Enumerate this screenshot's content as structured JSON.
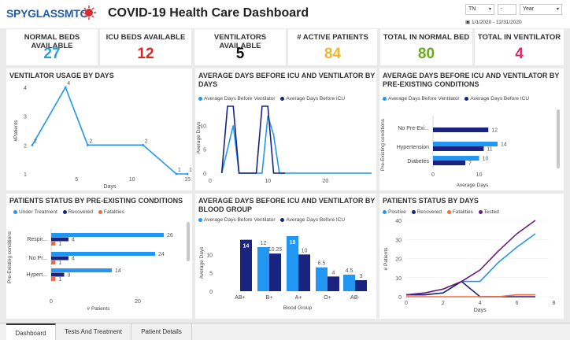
{
  "header": {
    "logo_text": "SPYGLASSMTG",
    "title": "COVID-19 Health Care Dashboard",
    "state_select": "TN",
    "state_select2": "-",
    "period_select": "Year",
    "date_range": "1/1/2020 - 12/31/2020"
  },
  "kpis": [
    {
      "label": "NORMAL BEDS AVAILABLE",
      "value": "27",
      "color": "#2a9fd6"
    },
    {
      "label": "ICU BEDS AVAILABLE",
      "value": "12",
      "color": "#e02424"
    },
    {
      "label": "VENTILATORS AVAILABLE",
      "value": "5",
      "color": "#111111"
    },
    {
      "label": "# ACTIVE PATIENTS",
      "value": "84",
      "color": "#f2b62a"
    },
    {
      "label": "TOTAL IN NORMAL BED",
      "value": "80",
      "color": "#6aa821"
    },
    {
      "label": "TOTAL IN VENTILATOR",
      "value": "4",
      "color": "#d32f6e"
    }
  ],
  "colors": {
    "light_blue": "#2196f3",
    "dark_blue": "#1a237e",
    "orange": "#f26b3a",
    "purple": "#6a1b7a"
  },
  "charts": {
    "vent_usage": {
      "title": "VENTILATOR USAGE BY DAYS",
      "xlabel": "Days",
      "ylabel": "#Patients",
      "x_ticks": [
        "5",
        "10",
        "15"
      ],
      "y_ticks": [
        "1",
        "2",
        "3",
        "4"
      ],
      "chart_data": {
        "type": "line",
        "x": [
          1,
          4,
          6,
          11,
          14,
          15
        ],
        "y": [
          2,
          4,
          2,
          2,
          1,
          1
        ],
        "labels": [
          "2",
          "4",
          "2",
          "2",
          "1",
          "1"
        ]
      }
    },
    "avg_days": {
      "title": "AVERAGE DAYS BEFORE ICU AND VENTILATOR BY DAYS",
      "ylabel": "Average Days",
      "x_ticks": [
        "0",
        "10",
        "20",
        "30"
      ],
      "y_ticks": [
        "0",
        "5",
        "10"
      ],
      "legend": [
        "Average Days Before Ventilator",
        "Average Days Before ICU"
      ],
      "chart_data": {
        "type": "line",
        "x": [
          0,
          1,
          2,
          3,
          4,
          5,
          6,
          7,
          8,
          9,
          10,
          11,
          12,
          13,
          14,
          15,
          16,
          17,
          18,
          19,
          20,
          21,
          22,
          23,
          24,
          25,
          26,
          27,
          28
        ],
        "series": [
          {
            "name": "Average Days Before Ventilator",
            "values": [
              null,
              null,
              0,
              5,
              10,
              0,
              0,
              0,
              0,
              0,
              12,
              8,
              0,
              0,
              0,
              0,
              0,
              0,
              0,
              0,
              0,
              0,
              0,
              0,
              0,
              0,
              0,
              0,
              0
            ]
          },
          {
            "name": "Average Days Before ICU",
            "values": [
              null,
              null,
              0,
              14,
              14,
              0,
              0,
              0,
              0,
              14,
              14,
              0,
              0,
              0,
              null,
              null,
              null,
              null,
              null,
              null,
              null,
              null,
              null,
              null,
              null,
              null,
              null,
              null,
              null
            ]
          }
        ]
      }
    },
    "preexisting_avg": {
      "title": "AVERAGE DAYS BEFORE ICU AND VENTILATOR BY PRE-EXISTING CONDITIONS",
      "xlabel": "Average Days",
      "ylabel": "Pre-Existing conditions",
      "x_ticks": [
        "0",
        "10"
      ],
      "legend": [
        "Average Days Before Ventilator",
        "Average Days Before ICU"
      ],
      "chart_data": {
        "type": "bar",
        "categories": [
          "No Pre-Exi...",
          "Hypertension",
          "Diabetes"
        ],
        "series": [
          {
            "name": "Average Days Before Ventilator",
            "values": [
              null,
              14,
              10
            ]
          },
          {
            "name": "Average Days Before ICU",
            "values": [
              12,
              11,
              7
            ]
          }
        ]
      }
    },
    "status_preexisting": {
      "title": "PATIENTS STATUS BY PRE-EXISTING CONDITIONS",
      "xlabel": "# Patients",
      "ylabel": "Pre-Existing conditions",
      "x_ticks": [
        "0",
        "20"
      ],
      "legend": [
        "Under Treatment",
        "Recovered",
        "Fatalities"
      ],
      "chart_data": {
        "type": "bar",
        "categories": [
          "Respir...",
          "No Pr...",
          "Hypert..."
        ],
        "series": [
          {
            "name": "Under Treatment",
            "values": [
              26,
              24,
              14
            ]
          },
          {
            "name": "Recovered",
            "values": [
              4,
              4,
              3
            ]
          },
          {
            "name": "Fatalities",
            "values": [
              1,
              1,
              1
            ]
          }
        ]
      }
    },
    "blood_group": {
      "title": "AVERAGE DAYS BEFORE ICU AND VENTILATOR BY BLOOD GROUP",
      "xlabel": "Blood Group",
      "ylabel": "Average Days",
      "y_ticks": [
        "0",
        "5",
        "10"
      ],
      "legend": [
        "Average Days Before Ventilator",
        "Average Days Before ICU"
      ],
      "chart_data": {
        "type": "bar",
        "categories": [
          "AB+",
          "B+",
          "A+",
          "O+",
          "AB-"
        ],
        "series": [
          {
            "name": "Average Days Before Ventilator",
            "values": [
              null,
              12,
              15,
              6.5,
              4.5
            ]
          },
          {
            "name": "Average Days Before ICU",
            "values": [
              14,
              10.25,
              10,
              4,
              3
            ]
          }
        ]
      }
    },
    "status_days": {
      "title": "PATIENTS STATUS BY DAYS",
      "xlabel": "Days",
      "ylabel": "# Patients",
      "x_ticks": [
        "0",
        "2",
        "4",
        "6",
        "8"
      ],
      "y_ticks": [
        "0",
        "10",
        "20",
        "30",
        "40"
      ],
      "legend": [
        "Positive",
        "Recovered",
        "Fatalities",
        "Tested"
      ],
      "chart_data": {
        "type": "line",
        "x": [
          0,
          1,
          2,
          3,
          4,
          5,
          6,
          7
        ],
        "series": [
          {
            "name": "Positive",
            "values": [
              1,
              1,
              2,
              8,
              8,
              18,
              26,
              33
            ]
          },
          {
            "name": "Recovered",
            "values": [
              1,
              1,
              2,
              8,
              0,
              0,
              0,
              0
            ]
          },
          {
            "name": "Fatalities",
            "values": [
              0,
              0,
              0,
              0,
              0,
              0,
              1,
              1
            ]
          },
          {
            "name": "Tested",
            "values": [
              1,
              2,
              4,
              8,
              14,
              24,
              33,
              40
            ]
          }
        ]
      }
    }
  },
  "tabs": [
    "Dashboard",
    "Tests And Treatment",
    "Patient Details"
  ]
}
